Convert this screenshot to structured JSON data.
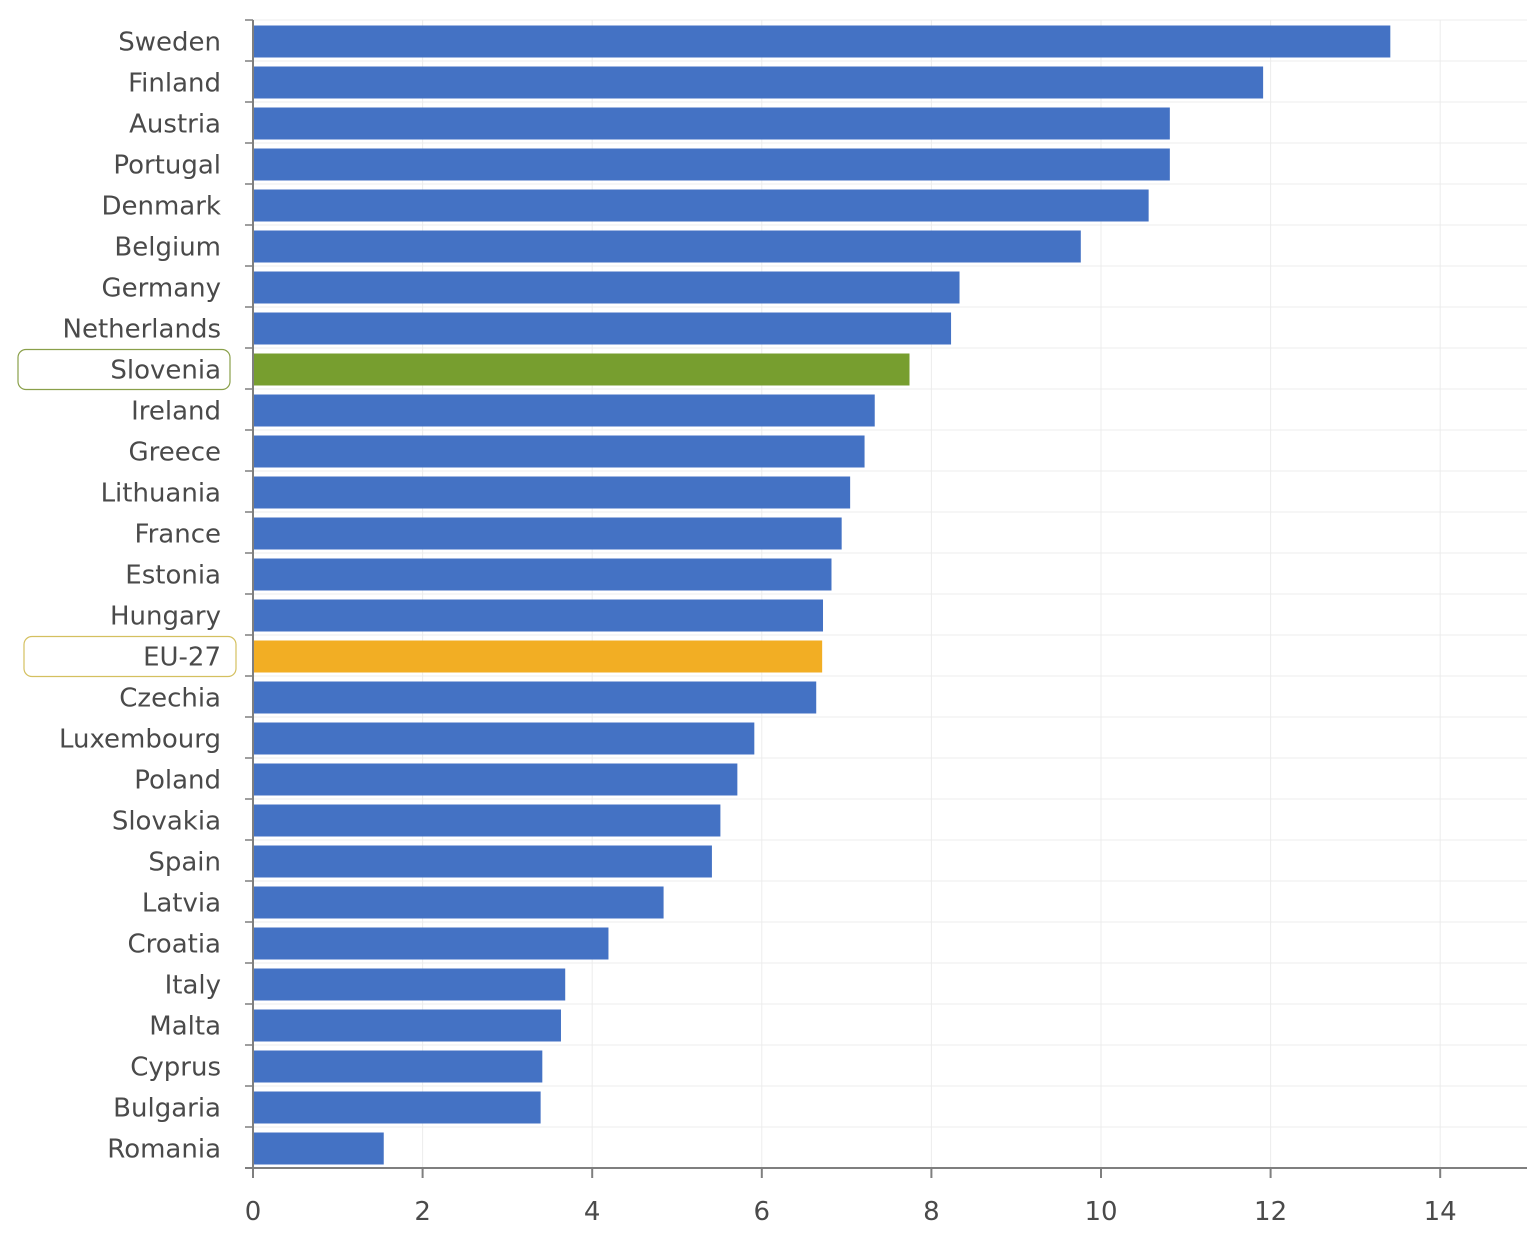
{
  "chart_data": {
    "type": "bar",
    "orientation": "horizontal",
    "categories": [
      "Sweden",
      "Finland",
      "Austria",
      "Portugal",
      "Denmark",
      "Belgium",
      "Germany",
      "Netherlands",
      "Slovenia",
      "Ireland",
      "Greece",
      "Lithuania",
      "France",
      "Estonia",
      "Hungary",
      "EU-27",
      "Czechia",
      "Luxembourg",
      "Poland",
      "Slovakia",
      "Spain",
      "Latvia",
      "Croatia",
      "Italy",
      "Malta",
      "Cyprus",
      "Bulgaria",
      "Romania"
    ],
    "values": [
      13.4,
      11.9,
      10.8,
      10.8,
      10.55,
      9.75,
      8.32,
      8.22,
      7.73,
      7.32,
      7.2,
      7.03,
      6.93,
      6.81,
      6.71,
      6.7,
      6.63,
      5.9,
      5.7,
      5.5,
      5.4,
      4.83,
      4.18,
      3.67,
      3.62,
      3.4,
      3.38,
      1.53
    ],
    "highlight": {
      "Slovenia": "#779e2f",
      "EU-27": "#f2ae24"
    },
    "xticks": [
      "0",
      "2",
      "4",
      "6",
      "8",
      "10",
      "12",
      "14"
    ],
    "xlim": [
      0,
      15
    ],
    "grid": true,
    "colors": {
      "bar": "#4472c4",
      "slovenia": "#779e2f",
      "eu27": "#f2ae24",
      "axis": "#7f7f7f",
      "grid": "#ececec"
    }
  }
}
